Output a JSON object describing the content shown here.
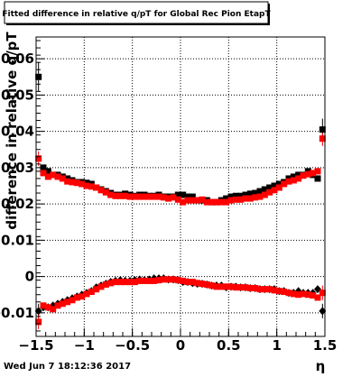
{
  "chart_data": {
    "type": "scatter",
    "title": "Fitted difference in relative q/pT for Global Rec Pion EtapT",
    "xlabel": "η",
    "ylabel": "difference in relative q/pT",
    "xlim": [
      -1.5,
      1.5
    ],
    "ylim": [
      -0.0165,
      0.066
    ],
    "x_ticks": [
      -1.5,
      -1,
      -0.5,
      0,
      0.5,
      1,
      1.5
    ],
    "x_tick_labels": [
      "−1.5",
      "−1",
      "−0.5",
      "0",
      "0.5",
      "1",
      "1.5"
    ],
    "y_ticks": [
      -0.01,
      0,
      0.01,
      0.02,
      0.03,
      0.04,
      0.05,
      0.06
    ],
    "y_tick_labels": [
      "-0.01",
      "0",
      "0.01",
      "0.02",
      "0.03",
      "0.04",
      "0.05",
      "0.06"
    ],
    "grid": true,
    "footer": "Wed Jun  7 18:12:36 2017",
    "series": [
      {
        "marker": "square",
        "color": "#000000",
        "x": [
          -1.475,
          -1.425,
          -1.375,
          -1.325,
          -1.275,
          -1.225,
          -1.175,
          -1.125,
          -1.075,
          -1.025,
          -0.975,
          -0.925,
          -0.875,
          -0.825,
          -0.775,
          -0.725,
          -0.675,
          -0.625,
          -0.575,
          -0.525,
          -0.475,
          -0.425,
          -0.375,
          -0.325,
          -0.275,
          -0.225,
          -0.175,
          -0.125,
          -0.075,
          -0.025,
          0.025,
          0.075,
          0.125,
          0.175,
          0.225,
          0.275,
          0.325,
          0.375,
          0.425,
          0.475,
          0.525,
          0.575,
          0.625,
          0.675,
          0.725,
          0.775,
          0.825,
          0.875,
          0.925,
          0.975,
          1.025,
          1.075,
          1.125,
          1.175,
          1.225,
          1.275,
          1.325,
          1.375,
          1.425,
          1.475
        ],
        "y": [
          0.055,
          0.03,
          0.029,
          0.028,
          0.028,
          0.0275,
          0.027,
          0.0265,
          0.026,
          0.026,
          0.0258,
          0.0255,
          0.0245,
          0.024,
          0.0235,
          0.023,
          0.0225,
          0.0225,
          0.0228,
          0.0225,
          0.0222,
          0.0225,
          0.0225,
          0.0222,
          0.0222,
          0.0225,
          0.022,
          0.022,
          0.022,
          0.0225,
          0.0225,
          0.022,
          0.022,
          0.021,
          0.021,
          0.021,
          0.0205,
          0.0205,
          0.021,
          0.0215,
          0.022,
          0.0222,
          0.0222,
          0.0225,
          0.0228,
          0.023,
          0.0235,
          0.024,
          0.0245,
          0.025,
          0.0255,
          0.026,
          0.027,
          0.0275,
          0.028,
          0.028,
          0.029,
          0.028,
          0.027,
          0.0405
        ]
      },
      {
        "marker": "square",
        "color": "#ff0000",
        "x": [
          -1.475,
          -1.425,
          -1.375,
          -1.325,
          -1.275,
          -1.225,
          -1.175,
          -1.125,
          -1.075,
          -1.025,
          -0.975,
          -0.925,
          -0.875,
          -0.825,
          -0.775,
          -0.725,
          -0.675,
          -0.625,
          -0.575,
          -0.525,
          -0.475,
          -0.425,
          -0.375,
          -0.325,
          -0.275,
          -0.225,
          -0.175,
          -0.125,
          -0.075,
          -0.025,
          0.025,
          0.075,
          0.125,
          0.175,
          0.225,
          0.275,
          0.325,
          0.375,
          0.425,
          0.475,
          0.525,
          0.575,
          0.625,
          0.675,
          0.725,
          0.775,
          0.825,
          0.875,
          0.925,
          0.975,
          1.025,
          1.075,
          1.125,
          1.175,
          1.225,
          1.275,
          1.325,
          1.375,
          1.425,
          1.475
        ],
        "y": [
          0.0325,
          0.0285,
          0.0275,
          0.028,
          0.0275,
          0.027,
          0.0262,
          0.026,
          0.0258,
          0.0255,
          0.025,
          0.0248,
          0.0245,
          0.0238,
          0.0232,
          0.0225,
          0.0222,
          0.0222,
          0.0222,
          0.022,
          0.022,
          0.022,
          0.022,
          0.022,
          0.022,
          0.022,
          0.0218,
          0.0215,
          0.0218,
          0.0212,
          0.0205,
          0.021,
          0.021,
          0.021,
          0.0212,
          0.0205,
          0.0205,
          0.0205,
          0.0205,
          0.0205,
          0.021,
          0.0212,
          0.0212,
          0.0215,
          0.0215,
          0.0218,
          0.022,
          0.0225,
          0.0232,
          0.0238,
          0.0245,
          0.0255,
          0.0262,
          0.0265,
          0.027,
          0.0278,
          0.0282,
          0.0285,
          0.029,
          0.038
        ]
      },
      {
        "marker": "diamond",
        "color": "#000000",
        "x": [
          -1.475,
          -1.425,
          -1.375,
          -1.325,
          -1.275,
          -1.225,
          -1.175,
          -1.125,
          -1.075,
          -1.025,
          -0.975,
          -0.925,
          -0.875,
          -0.825,
          -0.775,
          -0.725,
          -0.675,
          -0.625,
          -0.575,
          -0.525,
          -0.475,
          -0.425,
          -0.375,
          -0.325,
          -0.275,
          -0.225,
          -0.175,
          -0.125,
          -0.075,
          -0.025,
          0.025,
          0.075,
          0.125,
          0.175,
          0.225,
          0.275,
          0.325,
          0.375,
          0.425,
          0.475,
          0.525,
          0.575,
          0.625,
          0.675,
          0.725,
          0.775,
          0.825,
          0.875,
          0.925,
          0.975,
          1.025,
          1.075,
          1.125,
          1.175,
          1.225,
          1.275,
          1.325,
          1.375,
          1.425,
          1.475
        ],
        "y": [
          -0.0095,
          -0.0085,
          -0.0085,
          -0.008,
          -0.0075,
          -0.007,
          -0.0065,
          -0.006,
          -0.0055,
          -0.005,
          -0.0045,
          -0.004,
          -0.003,
          -0.0025,
          -0.002,
          -0.0015,
          -0.0012,
          -0.001,
          -0.0012,
          -0.0012,
          -0.001,
          -0.0008,
          -0.001,
          -0.0008,
          -0.0005,
          -0.0005,
          -0.0005,
          -0.0008,
          -0.0008,
          -0.001,
          -0.0015,
          -0.0015,
          -0.0018,
          -0.002,
          -0.002,
          -0.0022,
          -0.0025,
          -0.0025,
          -0.0025,
          -0.003,
          -0.0028,
          -0.0028,
          -0.003,
          -0.003,
          -0.0032,
          -0.0032,
          -0.0035,
          -0.0035,
          -0.0035,
          -0.0035,
          -0.004,
          -0.004,
          -0.0045,
          -0.0045,
          -0.004,
          -0.0045,
          -0.0045,
          -0.0045,
          -0.0035,
          -0.0095
        ]
      },
      {
        "marker": "square",
        "color": "#ff0000",
        "x": [
          -1.475,
          -1.425,
          -1.375,
          -1.325,
          -1.275,
          -1.225,
          -1.175,
          -1.125,
          -1.075,
          -1.025,
          -0.975,
          -0.925,
          -0.875,
          -0.825,
          -0.775,
          -0.725,
          -0.675,
          -0.625,
          -0.575,
          -0.525,
          -0.475,
          -0.425,
          -0.375,
          -0.325,
          -0.275,
          -0.225,
          -0.175,
          -0.125,
          -0.075,
          -0.025,
          0.025,
          0.075,
          0.125,
          0.175,
          0.225,
          0.275,
          0.325,
          0.375,
          0.425,
          0.475,
          0.525,
          0.575,
          0.625,
          0.675,
          0.725,
          0.775,
          0.825,
          0.875,
          0.925,
          0.975,
          1.025,
          1.075,
          1.125,
          1.175,
          1.225,
          1.275,
          1.325,
          1.375,
          1.425,
          1.475
        ],
        "y": [
          -0.0125,
          -0.008,
          -0.0085,
          -0.009,
          -0.008,
          -0.0075,
          -0.007,
          -0.0065,
          -0.0058,
          -0.0055,
          -0.0048,
          -0.0042,
          -0.0035,
          -0.0028,
          -0.0022,
          -0.0018,
          -0.0015,
          -0.0015,
          -0.0015,
          -0.0015,
          -0.0015,
          -0.0012,
          -0.0012,
          -0.0012,
          -0.0012,
          -0.001,
          -0.0008,
          -0.0008,
          -0.0008,
          -0.001,
          -0.0012,
          -0.0015,
          -0.0015,
          -0.0018,
          -0.002,
          -0.0022,
          -0.0025,
          -0.0028,
          -0.0028,
          -0.0028,
          -0.0028,
          -0.003,
          -0.003,
          -0.003,
          -0.0032,
          -0.0032,
          -0.0035,
          -0.0035,
          -0.0035,
          -0.0038,
          -0.004,
          -0.0042,
          -0.0045,
          -0.0048,
          -0.005,
          -0.0048,
          -0.005,
          -0.0052,
          -0.0058,
          -0.0045
        ]
      }
    ]
  }
}
